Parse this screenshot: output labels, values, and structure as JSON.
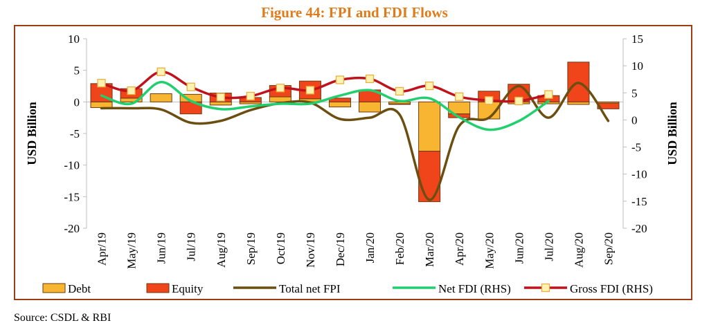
{
  "title": "Figure 44: FPI and FDI Flows",
  "source": "Source: CSDL & RBI",
  "colors": {
    "title": "#e07b1a",
    "frame": "#9c3c14",
    "debt": "#f8b532",
    "equity": "#f0441a",
    "bar_stroke": "#6a3a12",
    "total_fpi": "#6b4e10",
    "net_fdi": "#22cf6e",
    "gross_fdi": "#c0121c",
    "gross_marker_fill": "#fff2b2",
    "gross_marker_stroke": "#e8b040"
  },
  "chart_data": {
    "type": "bar",
    "categories": [
      "Apr/19",
      "May/19",
      "Jun/19",
      "Jul/19",
      "Aug/19",
      "Sep/19",
      "Oct/19",
      "Nov/19",
      "Dec/19",
      "Jan/20",
      "Feb/20",
      "Mar/20",
      "Apr/20",
      "May/20",
      "Jun/20",
      "Jul/20",
      "Aug/20",
      "Sep/20"
    ],
    "series": [
      {
        "name": "Debt",
        "kind": "bar",
        "axis": "left",
        "values": [
          -0.9,
          0.6,
          1.3,
          1.2,
          -0.5,
          -0.3,
          0.8,
          0.5,
          -0.8,
          -1.6,
          -0.3,
          -7.8,
          -1.9,
          -2.7,
          -0.3,
          -0.3,
          -0.4,
          -0.2
        ]
      },
      {
        "name": "Equity",
        "kind": "bar",
        "axis": "left",
        "values": [
          2.9,
          1.5,
          0.0,
          -1.9,
          1.4,
          0.7,
          1.8,
          2.8,
          0.6,
          1.9,
          -0.1,
          -8.0,
          -0.6,
          1.7,
          2.8,
          1.0,
          6.3,
          -0.9
        ]
      },
      {
        "name": "Total net FPI",
        "kind": "line",
        "axis": "left",
        "values": [
          -1.0,
          -1.0,
          -1.2,
          -3.3,
          -3.0,
          -1.3,
          -0.2,
          -0.1,
          -2.7,
          -2.5,
          -2.0,
          -15.5,
          -3.8,
          -2.5,
          2.5,
          -2.5,
          3.0,
          -3.0
        ]
      },
      {
        "name": "Net FDI (RHS)",
        "kind": "line",
        "axis": "right",
        "values": [
          4.5,
          3.0,
          7.0,
          3.5,
          2.0,
          2.5,
          3.0,
          3.0,
          4.5,
          5.5,
          3.5,
          4.0,
          0.5,
          -1.8,
          -0.2,
          3.5,
          null,
          null
        ]
      },
      {
        "name": "Gross FDI (RHS)",
        "kind": "line",
        "axis": "right",
        "values": [
          6.8,
          5.4,
          8.9,
          6.1,
          4.2,
          4.4,
          5.9,
          5.5,
          7.4,
          7.6,
          5.3,
          6.3,
          4.3,
          3.6,
          3.5,
          4.7,
          null,
          null
        ]
      }
    ],
    "ylim": [
      -20,
      10
    ],
    "y_ticks": [
      "10",
      "5",
      "0",
      "-5",
      "-10",
      "-15",
      "-20"
    ],
    "y2lim": [
      -20,
      15
    ],
    "y2_ticks": [
      "15",
      "10",
      "5",
      "0",
      "-5",
      "-10",
      "-15",
      "-20"
    ],
    "ylabel": "USD Billion",
    "y2label": "USD Billion",
    "grid": false,
    "legend_position": "bottom",
    "legend": [
      {
        "label": "Debt",
        "kind": "bar"
      },
      {
        "label": "Equity",
        "kind": "bar"
      },
      {
        "label": "Total net FPI",
        "kind": "line"
      },
      {
        "label": "Net FDI (RHS)",
        "kind": "line"
      },
      {
        "label": "Gross FDI (RHS)",
        "kind": "line-marker"
      }
    ]
  }
}
